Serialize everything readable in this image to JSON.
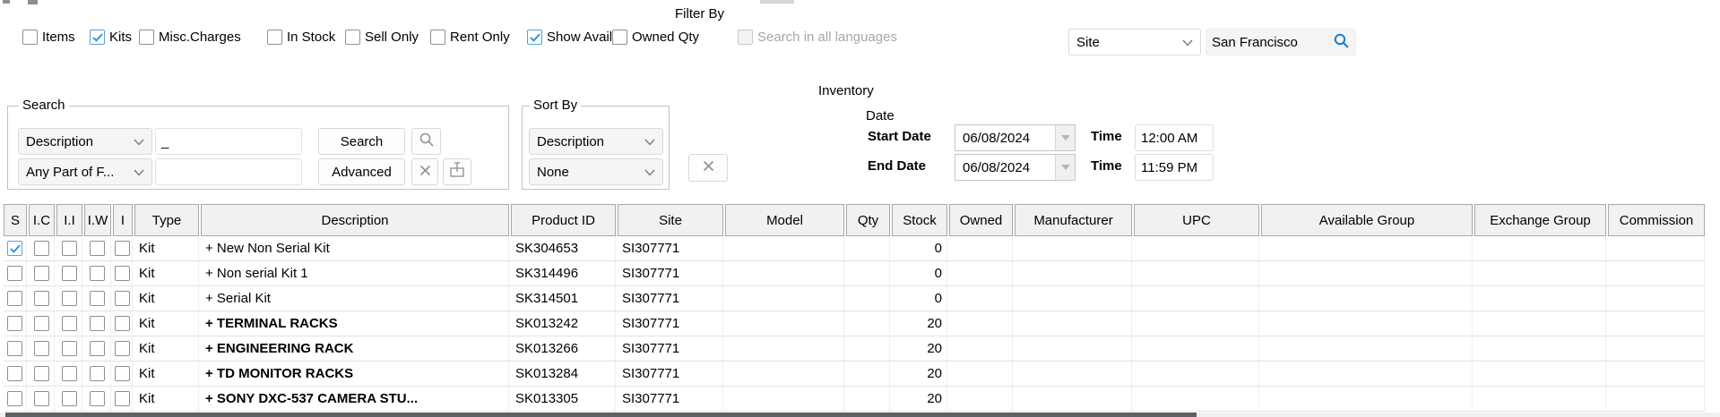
{
  "colors": {
    "accent_blue": "#2f96e0",
    "site_search_blue": "#1c7cc9",
    "gray_icon": "#949494",
    "bottom_bar": "#5a6167",
    "disabled_text": "#a6a6a6"
  },
  "filter": {
    "title": "Filter By",
    "checkboxes": [
      {
        "label": "Items",
        "checked": false,
        "disabled": false
      },
      {
        "label": "Kits",
        "checked": true,
        "disabled": false
      },
      {
        "label": "Misc.Charges",
        "checked": false,
        "disabled": false
      },
      {
        "label": "In Stock",
        "checked": false,
        "disabled": false
      },
      {
        "label": "Sell Only",
        "checked": false,
        "disabled": false
      },
      {
        "label": "Rent Only",
        "checked": false,
        "disabled": false
      },
      {
        "label": "Show Avail",
        "checked": true,
        "disabled": false
      },
      {
        "label": "Owned Qty",
        "checked": false,
        "disabled": false
      },
      {
        "label": "Search in all languages",
        "checked": false,
        "disabled": true
      }
    ],
    "site_dropdown_value": "Site",
    "site_search_value": "San Francisco"
  },
  "inventory": {
    "section_title": "Inventory",
    "search_group": {
      "legend": "Search",
      "field_dropdown_value": "Description",
      "query_value": "_",
      "search_button": "Search",
      "match_dropdown_value": "Any Part of F...",
      "query2_value": "",
      "advanced_button": "Advanced"
    },
    "sort_group": {
      "legend": "Sort By",
      "primary_value": "Description",
      "secondary_value": "None"
    },
    "date_group": {
      "label": "Date",
      "start_label": "Start Date",
      "start_date": "06/08/2024",
      "start_time_label": "Time",
      "start_time": "12:00 AM",
      "end_label": "End Date",
      "end_date": "06/08/2024",
      "end_time_label": "Time",
      "end_time": "11:59 PM"
    }
  },
  "table": {
    "columns": [
      {
        "key": "s",
        "label": "S"
      },
      {
        "key": "ic",
        "label": "I.C"
      },
      {
        "key": "ii",
        "label": "I.I"
      },
      {
        "key": "iw",
        "label": "I.W"
      },
      {
        "key": "i",
        "label": "I"
      },
      {
        "key": "type",
        "label": "Type"
      },
      {
        "key": "description",
        "label": "Description"
      },
      {
        "key": "product_id",
        "label": "Product ID"
      },
      {
        "key": "site",
        "label": "Site"
      },
      {
        "key": "model",
        "label": "Model"
      },
      {
        "key": "qty",
        "label": "Qty"
      },
      {
        "key": "stock",
        "label": "Stock"
      },
      {
        "key": "owned",
        "label": "Owned"
      },
      {
        "key": "manufacturer",
        "label": "Manufacturer"
      },
      {
        "key": "upc",
        "label": "UPC"
      },
      {
        "key": "available_group",
        "label": "Available Group"
      },
      {
        "key": "exchange_group",
        "label": "Exchange Group"
      },
      {
        "key": "commission",
        "label": "Commission"
      }
    ],
    "rows": [
      {
        "selected": true,
        "bold": false,
        "type": "Kit",
        "description": "+ New Non Serial Kit",
        "product_id": "SK304653",
        "site": "SI307771",
        "model": "",
        "qty": "",
        "stock": "0",
        "owned": "",
        "manufacturer": "",
        "upc": "",
        "available_group": "",
        "exchange_group": "",
        "commission": ""
      },
      {
        "selected": false,
        "bold": false,
        "type": "Kit",
        "description": "+ Non serial Kit 1",
        "product_id": "SK314496",
        "site": "SI307771",
        "model": "",
        "qty": "",
        "stock": "0",
        "owned": "",
        "manufacturer": "",
        "upc": "",
        "available_group": "",
        "exchange_group": "",
        "commission": ""
      },
      {
        "selected": false,
        "bold": false,
        "type": "Kit",
        "description": "+ Serial Kit",
        "product_id": "SK314501",
        "site": "SI307771",
        "model": "",
        "qty": "",
        "stock": "0",
        "owned": "",
        "manufacturer": "",
        "upc": "",
        "available_group": "",
        "exchange_group": "",
        "commission": ""
      },
      {
        "selected": false,
        "bold": true,
        "type": "Kit",
        "description": "+ TERMINAL RACKS",
        "product_id": "SK013242",
        "site": "SI307771",
        "model": "",
        "qty": "",
        "stock": "20",
        "owned": "",
        "manufacturer": "",
        "upc": "",
        "available_group": "",
        "exchange_group": "",
        "commission": ""
      },
      {
        "selected": false,
        "bold": true,
        "type": "Kit",
        "description": "+ ENGINEERING RACK",
        "product_id": "SK013266",
        "site": "SI307771",
        "model": "",
        "qty": "",
        "stock": "20",
        "owned": "",
        "manufacturer": "",
        "upc": "",
        "available_group": "",
        "exchange_group": "",
        "commission": ""
      },
      {
        "selected": false,
        "bold": true,
        "type": "Kit",
        "description": "+ TD MONITOR RACKS",
        "product_id": "SK013284",
        "site": "SI307771",
        "model": "",
        "qty": "",
        "stock": "20",
        "owned": "",
        "manufacturer": "",
        "upc": "",
        "available_group": "",
        "exchange_group": "",
        "commission": ""
      },
      {
        "selected": false,
        "bold": true,
        "type": "Kit",
        "description": "+ SONY DXC-537 CAMERA STU...",
        "product_id": "SK013305",
        "site": "SI307771",
        "model": "",
        "qty": "",
        "stock": "20",
        "owned": "",
        "manufacturer": "",
        "upc": "",
        "available_group": "",
        "exchange_group": "",
        "commission": ""
      }
    ]
  }
}
